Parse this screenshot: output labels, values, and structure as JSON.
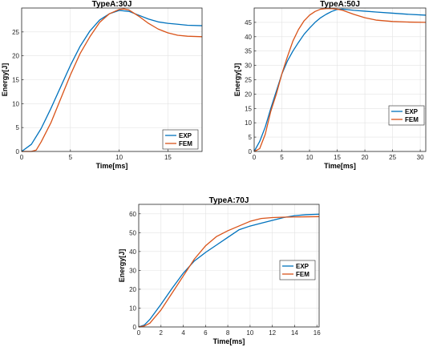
{
  "chart_data": [
    {
      "type": "line",
      "title": "TypeA:30J",
      "xlabel": "Time[ms]",
      "ylabel": "Energy[J]",
      "xlim": [
        0,
        18.5
      ],
      "ylim": [
        0,
        30
      ],
      "xticks": [
        0,
        5,
        10,
        15
      ],
      "yticks": [
        0,
        5,
        10,
        15,
        20,
        25
      ],
      "grid": true,
      "legend_position": "bottom-right",
      "series": [
        {
          "name": "EXP",
          "color": "#0072BD",
          "x": [
            0,
            1,
            2,
            3,
            4,
            5,
            6,
            7,
            8,
            9,
            10,
            11,
            12,
            13,
            14,
            15,
            16,
            17,
            18.5
          ],
          "y": [
            0,
            1.5,
            4.8,
            9,
            13.5,
            18,
            22,
            25.2,
            27.5,
            28.8,
            29.5,
            29.3,
            28.5,
            27.7,
            27.1,
            26.8,
            26.6,
            26.4,
            26.3
          ]
        },
        {
          "name": "FEM",
          "color": "#D95319",
          "x": [
            0,
            1,
            1.5,
            2,
            3,
            4,
            5,
            6,
            7,
            8,
            9,
            10,
            10.5,
            11,
            12,
            13,
            14,
            15,
            16,
            17,
            18.5
          ],
          "y": [
            0,
            0,
            0.3,
            2,
            6,
            11,
            16,
            20.5,
            24,
            27,
            28.8,
            29.7,
            29.8,
            29.6,
            28.3,
            26.8,
            25.6,
            24.8,
            24.3,
            24.1,
            24.0
          ]
        }
      ]
    },
    {
      "type": "line",
      "title": "TypeA:50J",
      "xlabel": "Time[ms]",
      "ylabel": "Energy[J]",
      "xlim": [
        0,
        31
      ],
      "ylim": [
        0,
        50
      ],
      "xticks": [
        0,
        5,
        10,
        15,
        20,
        25,
        30
      ],
      "yticks": [
        0,
        5,
        10,
        15,
        20,
        25,
        30,
        35,
        40,
        45
      ],
      "grid": true,
      "legend_position": "bottom-right",
      "series": [
        {
          "name": "EXP",
          "color": "#0072BD",
          "x": [
            0,
            1,
            2,
            3,
            4,
            5,
            6,
            7,
            8,
            9,
            10,
            11,
            12,
            13,
            14,
            15,
            16,
            17,
            18,
            20,
            22,
            25,
            28,
            31
          ],
          "y": [
            0,
            3.5,
            8.5,
            15,
            21,
            27,
            31.5,
            35,
            38,
            40.8,
            43,
            45,
            46.6,
            47.8,
            48.8,
            49.5,
            49.6,
            49.4,
            49.2,
            48.9,
            48.6,
            48.2,
            47.8,
            47.5
          ]
        },
        {
          "name": "FEM",
          "color": "#D95319",
          "x": [
            0,
            1,
            2,
            3,
            4,
            5,
            6,
            7,
            8,
            9,
            10,
            11,
            12,
            13,
            14,
            15,
            16,
            17,
            18,
            20,
            22,
            25,
            28,
            31
          ],
          "y": [
            0,
            1,
            6,
            14,
            20,
            27,
            33,
            38.5,
            42.5,
            45.5,
            47.5,
            48.8,
            49.6,
            49.8,
            49.8,
            49.6,
            49.2,
            48.5,
            47.8,
            46.6,
            45.8,
            45.3,
            45.1,
            45.0
          ]
        }
      ]
    },
    {
      "type": "line",
      "title": "TypeA:70J",
      "xlabel": "Time[ms]",
      "ylabel": "Energy[J]",
      "xlim": [
        0,
        16.2
      ],
      "ylim": [
        0,
        65
      ],
      "xticks": [
        0,
        2,
        4,
        6,
        8,
        10,
        12,
        14,
        16
      ],
      "yticks": [
        0,
        10,
        20,
        30,
        40,
        50,
        60
      ],
      "grid": true,
      "legend_position": "middle-right",
      "series": [
        {
          "name": "EXP",
          "color": "#0072BD",
          "x": [
            0,
            0.5,
            1,
            2,
            3,
            4,
            5,
            6,
            7,
            8,
            9,
            10,
            11,
            12,
            13,
            14,
            15,
            16.2
          ],
          "y": [
            0,
            1,
            4,
            12,
            20.5,
            28.5,
            35,
            39.5,
            43.5,
            47.5,
            51.5,
            53.5,
            55,
            56.5,
            58,
            59,
            59.5,
            59.8
          ]
        },
        {
          "name": "FEM",
          "color": "#D95319",
          "x": [
            0,
            0.5,
            1,
            2,
            3,
            4,
            5,
            6,
            7,
            8,
            9,
            10,
            11,
            12,
            13,
            14,
            15,
            16.2
          ],
          "y": [
            0,
            0.5,
            2,
            9,
            18,
            27,
            36,
            43,
            48,
            51,
            53.5,
            56,
            57.5,
            58,
            58.2,
            58.3,
            58.4,
            58.5
          ]
        }
      ]
    }
  ]
}
